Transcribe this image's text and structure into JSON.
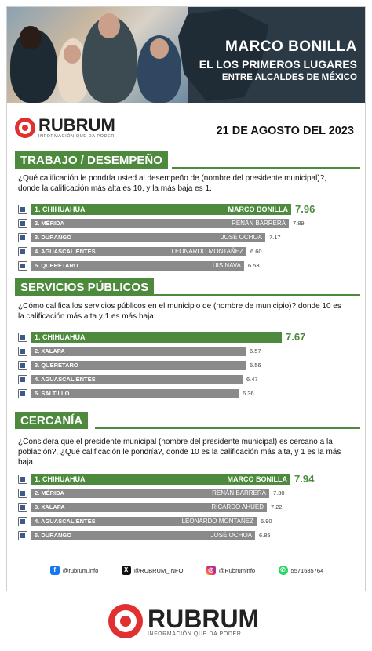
{
  "hero": {
    "line1": "MARCO BONILLA",
    "line2": "EL LOS PRIMEROS LUGARES",
    "line3": "ENTRE ALCALDES DE MÉXICO"
  },
  "brand": {
    "name": "RUBRUM",
    "tagline": "INFORMACIÓN QUE DA PODER",
    "accent": "#e03030",
    "green": "#4e8a3d"
  },
  "date": "21 DE AGOSTO DEL 2023",
  "chart_data": [
    {
      "type": "bar",
      "title": "TRABAJO / DESEMPEÑO",
      "question": "¿Qué calificación le pondría usted al desempeño de (nombre del presidente municipal)?, donde la calificación más alta es 10, y la más baja es 1.",
      "categories": [
        "1. CHIHUAHUA",
        "2. MÉRIDA",
        "3. DURANGO",
        "4. AGUASCALIENTES",
        "5. QUERÉTARO"
      ],
      "names": [
        "MARCO BONILLA",
        "RENÁN BARRERA",
        "JOSÉ OCHOA",
        "LEONARDO MONTAÑEZ",
        "LUIS NAVA"
      ],
      "values": [
        7.96,
        7.89,
        7.17,
        6.6,
        6.53
      ],
      "value_labels": [
        "7.96",
        "7.89",
        "7.17",
        "6.60",
        "6.53"
      ]
    },
    {
      "type": "bar",
      "title": "SERVICIOS PÚBLICOS",
      "question": "¿Cómo califica los servicios públicos en el municipio de (nombre de municipio)? donde 10 es la calificación más alta y 1 es más baja.",
      "categories": [
        "1. CHIHUAHUA",
        "2. XALAPA",
        "3. QUERÉTARO",
        "4. AGUASCALIENTES",
        "5. SALTILLO"
      ],
      "names": [
        "",
        "",
        "",
        "",
        ""
      ],
      "values": [
        7.67,
        6.57,
        6.56,
        6.47,
        6.36
      ],
      "value_labels": [
        "7.67",
        "6.57",
        "6.56",
        "6.47",
        "6.36"
      ]
    },
    {
      "type": "bar",
      "title": "CERCANÍA",
      "question": "¿Considera que el presidente municipal (nombre del presidente municipal) es cercano a la población?, ¿Qué calificación le pondría?, donde 10 es la calificación más alta, y 1 es la más baja.",
      "categories": [
        "1. CHIHUAHUA",
        "2. MÉRIDA",
        "3. XALAPA",
        "4. AGUASCALIENTES",
        "5. DURANGO"
      ],
      "names": [
        "MARCO BONILLA",
        "RENÁN BARRERA",
        "RICARDO AHUED",
        "LEONARDO MONTAÑEZ",
        "JOSÉ OCHOA"
      ],
      "values": [
        7.94,
        7.3,
        7.22,
        6.9,
        6.85
      ],
      "value_labels": [
        "7.94",
        "7.30",
        "7.22",
        "6.90",
        "6.85"
      ]
    }
  ],
  "socials": [
    {
      "icon": "facebook-icon",
      "label": "@rubrum.info"
    },
    {
      "icon": "x-icon",
      "label": "@RUBRUM_INFO"
    },
    {
      "icon": "instagram-icon",
      "label": "@Rubruminfo"
    },
    {
      "icon": "whatsapp-icon",
      "label": "5571685764"
    }
  ]
}
